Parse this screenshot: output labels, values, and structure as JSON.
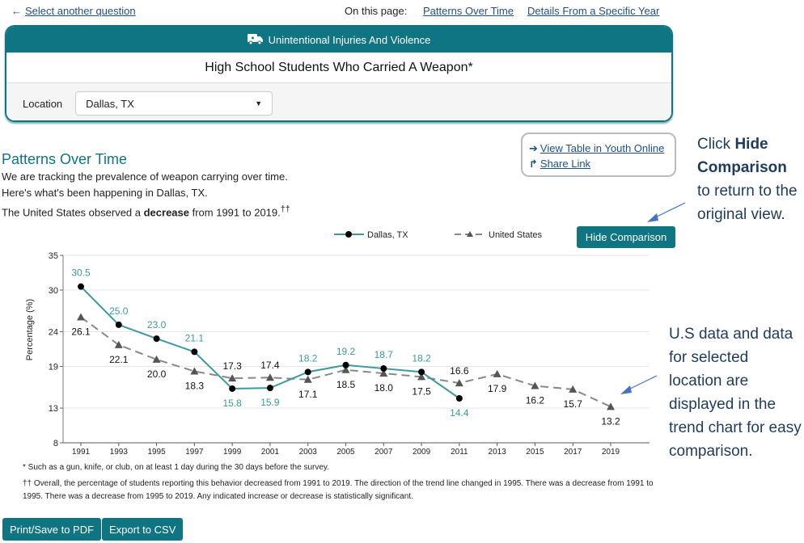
{
  "nav": {
    "back": "Select another question",
    "on_this_page": "On this page:",
    "links": [
      "Patterns Over Time",
      "Details From a Specific Year"
    ]
  },
  "card": {
    "category": "Unintentional Injuries And Violence",
    "category_icon": "ambulance-icon",
    "title": "High School Students Who Carried A Weapon*",
    "location_label": "Location",
    "location_value": "Dallas, TX"
  },
  "section": {
    "title": "Patterns Over Time",
    "lines": [
      "We are tracking the prevalence of weapon carrying over time.",
      "Here's what's been happening in Dallas, TX."
    ],
    "line3_pre": "The United States observed a ",
    "line3_bold": "decrease",
    "line3_post": " from 1991 to 2019.",
    "line3_sup": "††"
  },
  "links": {
    "view_table": "View Table in Youth Online",
    "share": "Share Link"
  },
  "hide_button": "Hide Comparison",
  "annotations": {
    "a1_pre": "Click ",
    "a1_bold": "Hide Comparison",
    "a1_post": " to return to the original view.",
    "a2": "U.S data and data for selected location are displayed in the trend chart for easy comparison."
  },
  "notes": [
    "* Such as a gun, knife, or club, on at least 1 day during the 30 days before the survey.",
    "†† Overall, the percentage of students reporting this behavior decreased from 1991 to 2019. The direction of the trend line changed in 1995. There was a decrease from 1991 to 1995. There was a decrease from 1995 to 2019. Any indicated increase or decrease is statistically significant."
  ],
  "buttons": {
    "pdf": "Print/Save to PDF",
    "csv": "Export to CSV"
  },
  "colors": {
    "teal": "#0f7582",
    "dallas_line": "#3a9a9c",
    "us_line": "#888888"
  },
  "chart_data": {
    "type": "line",
    "ylabel": "Percentage (%)",
    "ylim": [
      8,
      35
    ],
    "yticks": [
      8,
      13,
      19,
      24,
      30,
      35
    ],
    "x": [
      1991,
      1993,
      1995,
      1997,
      1999,
      2001,
      2003,
      2005,
      2007,
      2009,
      2011,
      2013,
      2015,
      2017,
      2019
    ],
    "legend_position": "top",
    "series": [
      {
        "name": "Dallas, TX",
        "marker": "circle",
        "values": [
          30.5,
          25.0,
          23.0,
          21.1,
          15.8,
          15.9,
          18.2,
          19.2,
          18.7,
          18.2,
          14.4,
          null,
          null,
          null,
          null
        ]
      },
      {
        "name": "United States",
        "marker": "triangle",
        "dashed": true,
        "values": [
          26.1,
          22.1,
          20.0,
          18.3,
          17.3,
          17.4,
          17.1,
          18.5,
          18.0,
          17.5,
          16.6,
          17.9,
          16.2,
          15.7,
          13.2
        ]
      }
    ]
  }
}
